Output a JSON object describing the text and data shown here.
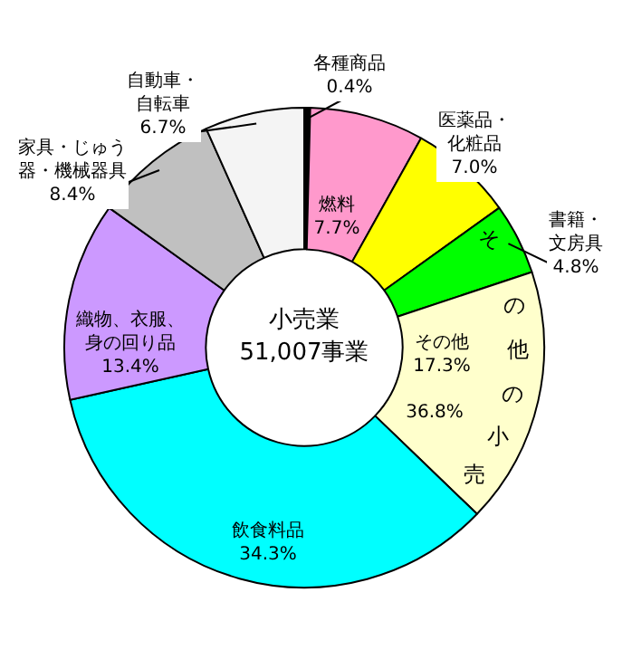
{
  "chart_data": {
    "type": "donut",
    "title": "小売業\n51,007事業",
    "categories": [
      "各種商品",
      "燃料",
      "医薬品・化粧品",
      "書籍・文房具",
      "その他",
      "飲食料品",
      "織物、衣服、身の回り品",
      "家具・じゅう器・機械器具",
      "自動車・自転車"
    ],
    "values": [
      0.4,
      7.7,
      7.0,
      4.8,
      17.3,
      34.3,
      13.4,
      8.4,
      6.7
    ],
    "value_labels": [
      "0.4%",
      "7.7%",
      "7.0%",
      "4.8%",
      "17.3%",
      "34.3%",
      "13.4%",
      "8.4%",
      "6.7%"
    ],
    "colors": [
      "#000000",
      "#ff99cc",
      "#ffff00",
      "#00ff00",
      "#ffffcc",
      "#00ffff",
      "#cc99ff",
      "#c0c0c0",
      "#f4f4f4"
    ],
    "annotations": [
      "その他の小売\n36.8%"
    ],
    "legend": false
  }
}
